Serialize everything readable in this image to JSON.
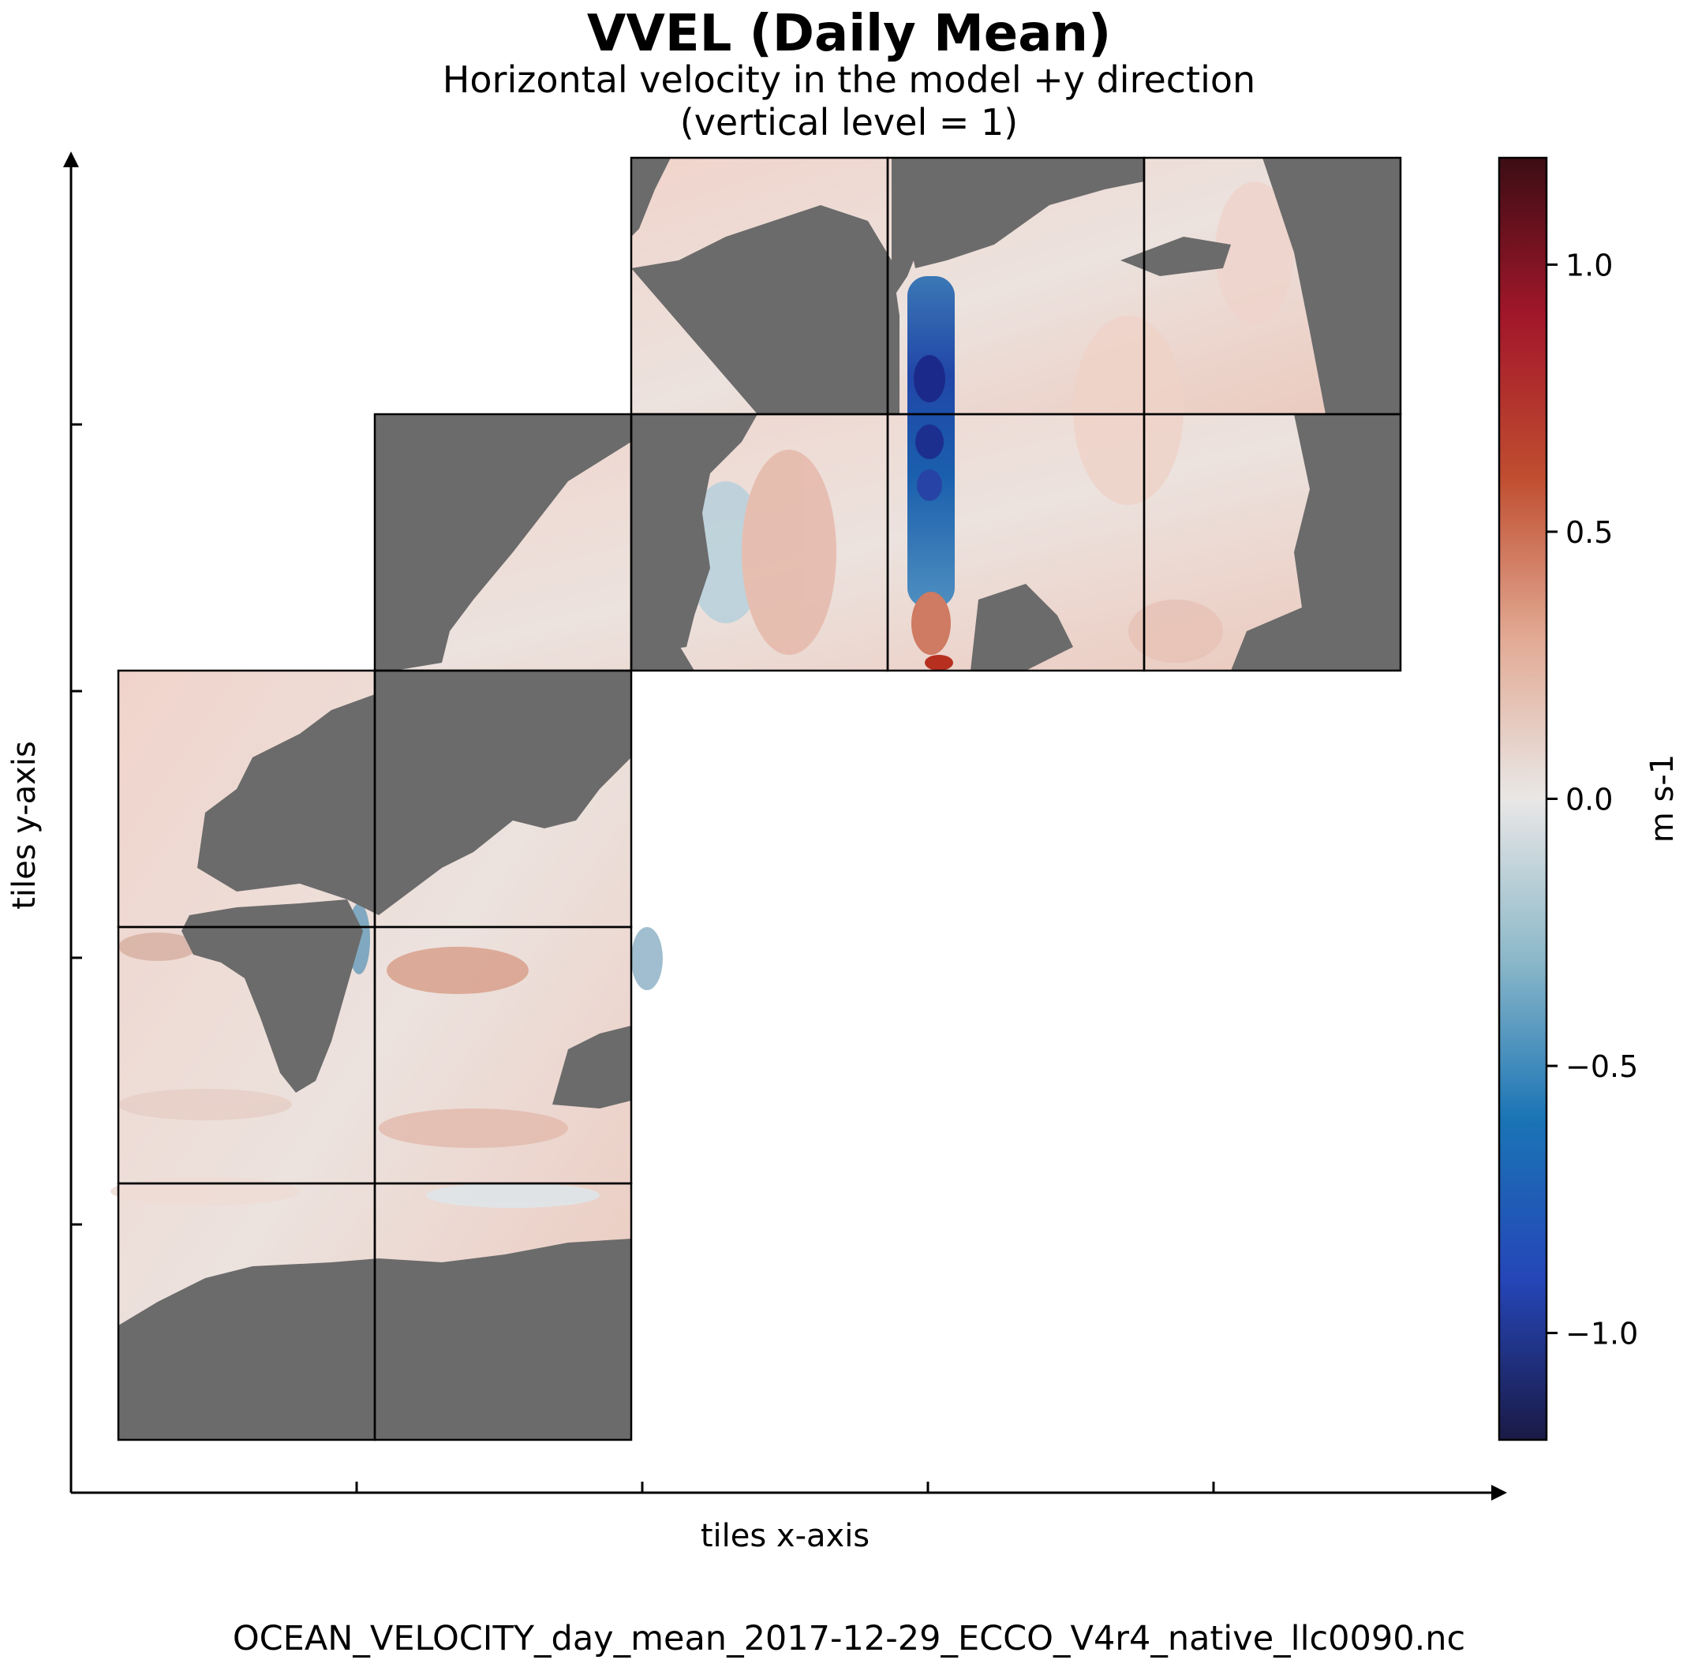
{
  "chart_data": {
    "type": "heatmap",
    "title": "VVEL (Daily Mean)",
    "subtitle_lines": [
      "Horizontal velocity in the model +y direction",
      "(vertical level = 1)"
    ],
    "xlabel": "tiles x-axis",
    "ylabel": "tiles y-axis",
    "colorbar": {
      "label": "m s-1",
      "vmin": -1.2,
      "vmax": 1.2,
      "ticks": [
        1.0,
        0.5,
        0.0,
        -0.5,
        -1.0
      ],
      "tick_labels": [
        "1.0",
        "0.5",
        "0.0",
        "−0.5",
        "−1.0"
      ],
      "colormap_stops": [
        {
          "value": -1.2,
          "color": "#1a1a45"
        },
        {
          "value": -0.9,
          "color": "#2546b8"
        },
        {
          "value": -0.6,
          "color": "#1a74b5"
        },
        {
          "value": -0.3,
          "color": "#8cb8c9"
        },
        {
          "value": 0.0,
          "color": "#e9e7e6"
        },
        {
          "value": 0.3,
          "color": "#e2aa94"
        },
        {
          "value": 0.6,
          "color": "#c04e30"
        },
        {
          "value": 0.9,
          "color": "#a3172a"
        },
        {
          "value": 1.2,
          "color": "#3c0d14"
        }
      ]
    },
    "land_color": "#6b6b6b",
    "tile_grid": {
      "columns": 5,
      "rows": 5
    }
  },
  "footer": "OCEAN_VELOCITY_day_mean_2017-12-29_ECCO_V4r4_native_llc0090.nc"
}
